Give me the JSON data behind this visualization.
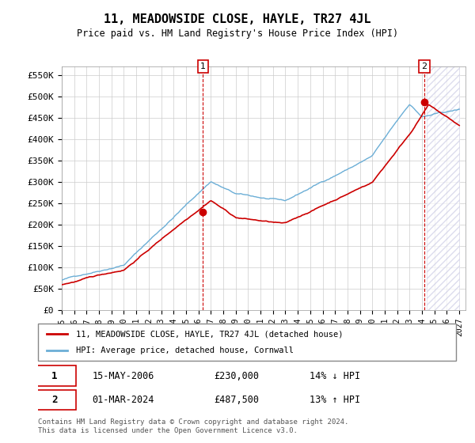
{
  "title": "11, MEADOWSIDE CLOSE, HAYLE, TR27 4JL",
  "subtitle": "Price paid vs. HM Land Registry's House Price Index (HPI)",
  "ylabel_ticks": [
    "£0",
    "£50K",
    "£100K",
    "£150K",
    "£200K",
    "£250K",
    "£300K",
    "£350K",
    "£400K",
    "£450K",
    "£500K",
    "£550K"
  ],
  "ytick_values": [
    0,
    50000,
    100000,
    150000,
    200000,
    250000,
    300000,
    350000,
    400000,
    450000,
    500000,
    550000
  ],
  "ylim": [
    0,
    570000
  ],
  "xlim_start": 1995.0,
  "xlim_end": 2027.5,
  "xticks": [
    1995,
    1996,
    1997,
    1998,
    1999,
    2000,
    2001,
    2002,
    2003,
    2004,
    2005,
    2006,
    2007,
    2008,
    2009,
    2010,
    2011,
    2012,
    2013,
    2014,
    2015,
    2016,
    2017,
    2018,
    2019,
    2020,
    2021,
    2022,
    2023,
    2024,
    2025,
    2026,
    2027
  ],
  "hpi_color": "#6baed6",
  "price_color": "#cc0000",
  "sale1_date": 2006.37,
  "sale1_price": 230000,
  "sale2_date": 2024.17,
  "sale2_price": 487500,
  "legend_label1": "11, MEADOWSIDE CLOSE, HAYLE, TR27 4JL (detached house)",
  "legend_label2": "HPI: Average price, detached house, Cornwall",
  "annotation1_label": "1",
  "annotation2_label": "2",
  "table_row1": [
    "1",
    "15-MAY-2006",
    "£230,000",
    "14% ↓ HPI"
  ],
  "table_row2": [
    "2",
    "01-MAR-2024",
    "£487,500",
    "13% ↑ HPI"
  ],
  "footer": "Contains HM Land Registry data © Crown copyright and database right 2024.\nThis data is licensed under the Open Government Licence v3.0.",
  "bg_color": "#ffffff",
  "grid_color": "#cccccc",
  "hatch_color": "#aaaacc"
}
